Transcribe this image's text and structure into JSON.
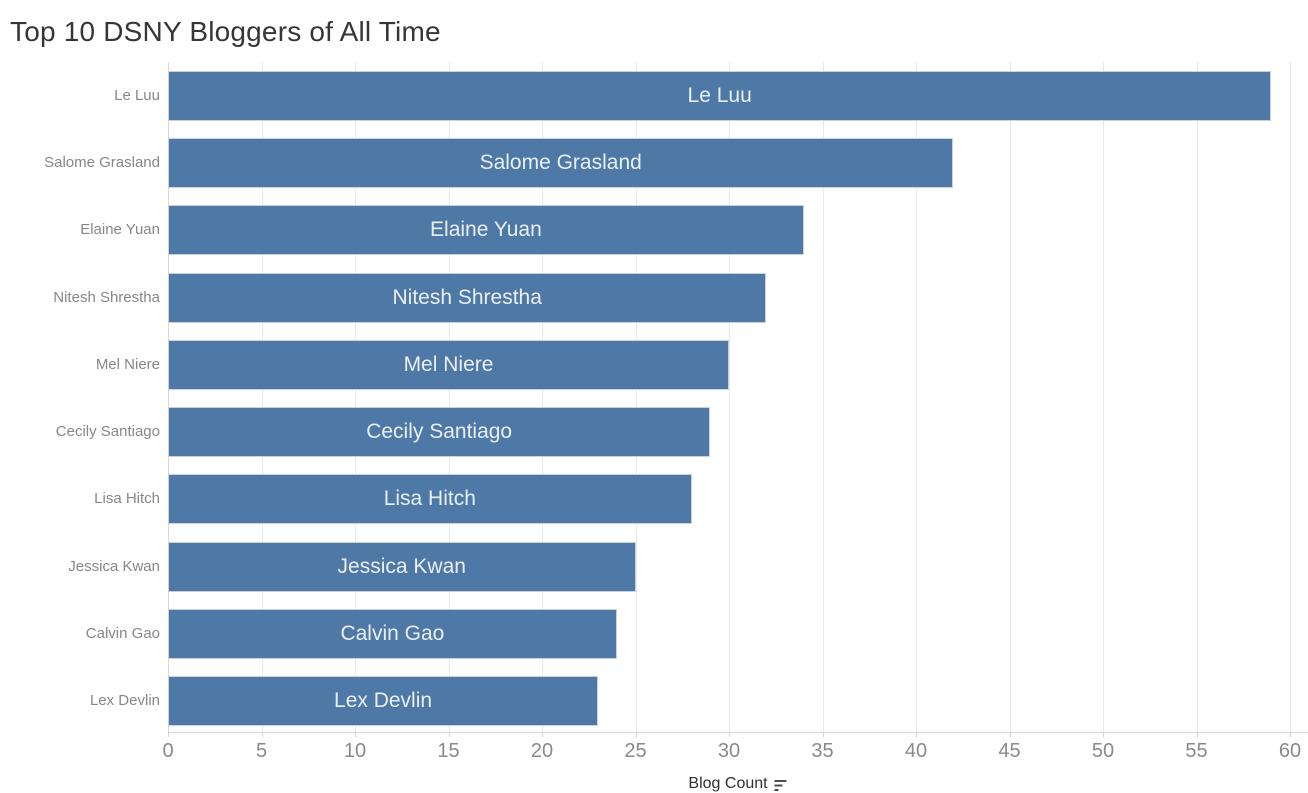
{
  "chart_data": {
    "type": "bar",
    "orientation": "horizontal",
    "title": "Top 10 DSNY Bloggers of All Time",
    "categories": [
      "Le Luu",
      "Salome Grasland",
      "Elaine Yuan",
      "Nitesh Shrestha",
      "Mel Niere",
      "Cecily Santiago",
      "Lisa Hitch",
      "Jessica Kwan",
      "Calvin Gao",
      "Lex Devlin"
    ],
    "values": [
      59,
      42,
      34,
      32,
      30,
      29,
      28,
      25,
      24,
      23
    ],
    "bar_labels": [
      "Le Luu",
      "Salome Grasland",
      "Elaine Yuan",
      "Nitesh Shrestha",
      "Mel Niere",
      "Cecily Santiago",
      "Lisa Hitch",
      "Jessica Kwan",
      "Calvin Gao",
      "Lex Devlin"
    ],
    "xlabel": "Blog Count",
    "ylabel": "",
    "x_ticks": [
      0,
      5,
      10,
      15,
      20,
      25,
      30,
      35,
      40,
      45,
      50,
      55,
      60
    ],
    "xlim": [
      0,
      61
    ],
    "grid": true,
    "legend_position": "none",
    "sort_indicator": "descending",
    "colors": {
      "bar": "#4e79a7",
      "bar_border": "#cbd1da",
      "bar_label": "#e8eef5",
      "category_label": "#878787",
      "tick_label": "#8a8a8a",
      "axis_title": "#303030",
      "gridline": "#e9e9e9",
      "axis_line": "#d7d7d7",
      "title": "#363636"
    }
  }
}
